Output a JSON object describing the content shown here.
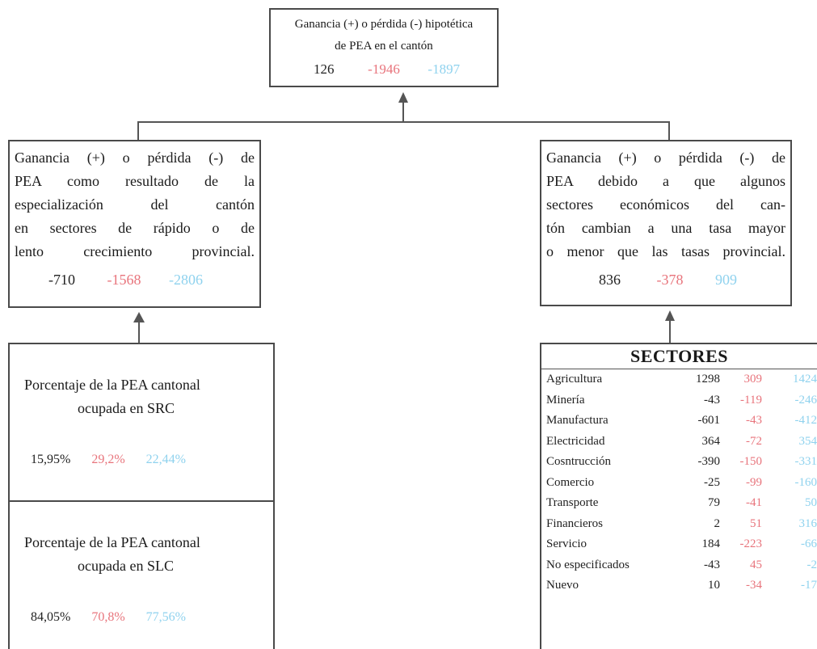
{
  "top": {
    "line1": "Ganancia (+) o pérdida (-) hipotética",
    "line2": "de PEA en el cantón",
    "values": [
      "126",
      "-1946",
      "-1897"
    ]
  },
  "left_effect": {
    "lines": [
      "Ganancia (+) o pérdida (-) de",
      "PEA como resultado de la",
      "especialización del cantón",
      "en sectores de rápido o de",
      "lento crecimiento provincial."
    ],
    "values": [
      "-710",
      "-1568",
      "-2806"
    ]
  },
  "right_effect": {
    "lines": [
      "Ganancia (+) o pérdida (-) de",
      "PEA debido a que algunos",
      "sectores económicos del can-",
      "tón cambian a una tasa mayor",
      "o menor que las tasas provincial."
    ],
    "values": [
      "836",
      "-378",
      "909"
    ]
  },
  "src": {
    "line1": "Porcentaje de la PEA cantonal",
    "line2": "ocupada en SRC",
    "values": [
      "15,95%",
      "29,2%",
      "22,44%"
    ]
  },
  "slc": {
    "line1": "Porcentaje de la PEA cantonal",
    "line2": "ocupada en SLC",
    "values": [
      "84,05%",
      "70,8%",
      "77,56%"
    ]
  },
  "sectores": {
    "title": "SECTORES",
    "rows": [
      {
        "name": "Agricultura",
        "v1": "1298",
        "v2": "309",
        "v3": "1424"
      },
      {
        "name": "Minería",
        "v1": "-43",
        "v2": "-119",
        "v3": "-246"
      },
      {
        "name": "Manufactura",
        "v1": "-601",
        "v2": "-43",
        "v3": "-412"
      },
      {
        "name": "Electricidad",
        "v1": "364",
        "v2": "-72",
        "v3": "354"
      },
      {
        "name": "Cosntrucción",
        "v1": "-390",
        "v2": "-150",
        "v3": "-331"
      },
      {
        "name": "Comercio",
        "v1": "-25",
        "v2": "-99",
        "v3": "-160"
      },
      {
        "name": "Transporte",
        "v1": "79",
        "v2": "-41",
        "v3": "50"
      },
      {
        "name": "Financieros",
        "v1": "2",
        "v2": "51",
        "v3": "316"
      },
      {
        "name": "Servicio",
        "v1": "184",
        "v2": "-223",
        "v3": "-66"
      },
      {
        "name": "No especificados",
        "v1": "-43",
        "v2": "45",
        "v3": "-2"
      },
      {
        "name": "Nuevo",
        "v1": "10",
        "v2": "-34",
        "v3": "-17"
      }
    ]
  },
  "colors": {
    "col1": "#222222",
    "col2": "#e8747c",
    "col3": "#8fd2ee",
    "lines": "#555555"
  }
}
